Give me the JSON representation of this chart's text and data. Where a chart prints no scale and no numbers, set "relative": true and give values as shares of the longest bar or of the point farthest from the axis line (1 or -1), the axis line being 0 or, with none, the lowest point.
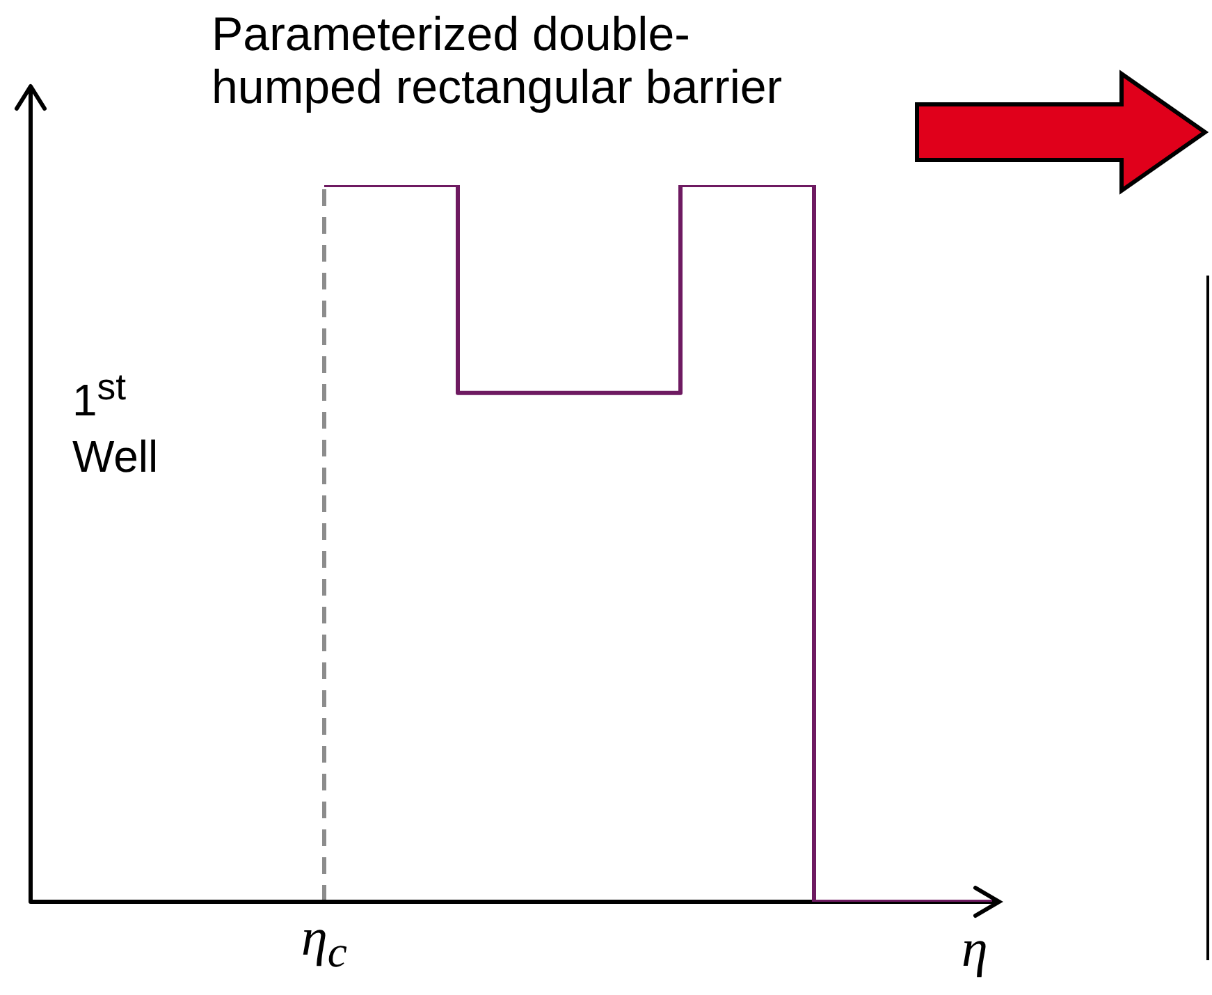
{
  "chart_data": {
    "type": "step",
    "title": "Parameterized double-humped rectangular barrier",
    "xlabel": "η",
    "relative": true,
    "categories": [
      null,
      null,
      null,
      null,
      null,
      null,
      null,
      null,
      null,
      null,
      null,
      null,
      null,
      null,
      null,
      null
    ],
    "series": [
      {
        "color": "#6e1a61",
        "values": [
          1,
          1,
          1,
          0.71,
          0.71,
          0.71,
          0.71,
          0.71,
          1,
          1,
          1,
          0,
          0,
          0,
          0,
          0
        ]
      }
    ],
    "ref_lines": [
      {
        "axis": "x",
        "label": "η$_{c}$",
        "color": "#8c8c8c",
        "line_style": "dashed"
      }
    ],
    "annotations": [
      "1$^{st}$ Well"
    ],
    "grid": false,
    "legend": false
  }
}
